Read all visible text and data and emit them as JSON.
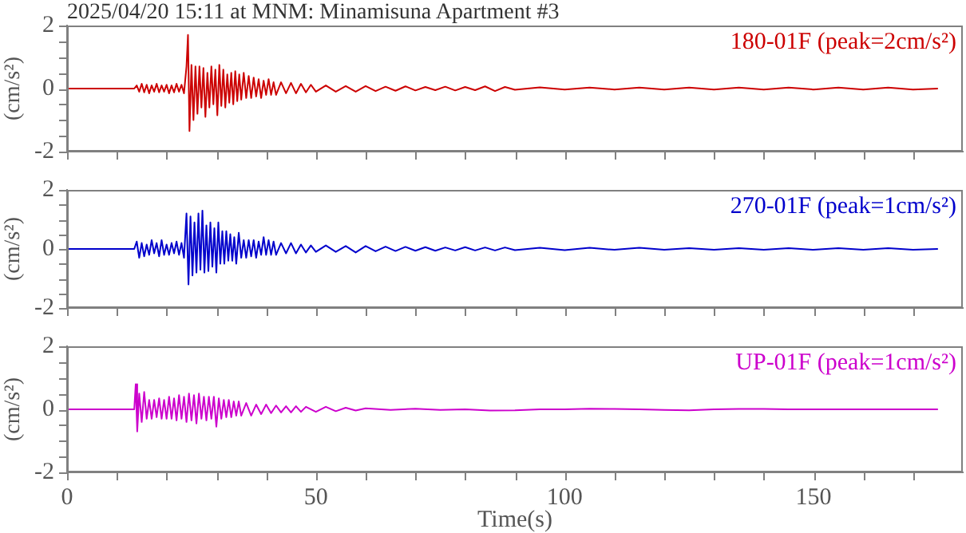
{
  "chart_data": [
    {
      "type": "line",
      "title": "2025/04/20 15:11 at MNM: Minamisuna Apartment #3",
      "ylabel": "(cm/s²)",
      "tick_labels": "y",
      "xlim": [
        0,
        180
      ],
      "xticks": [
        0,
        {
          "value": 10,
          "label": null
        },
        {
          "value": 20,
          "label": null
        },
        {
          "value": 30,
          "label": null
        },
        {
          "value": 40,
          "label": null
        },
        50,
        {
          "value": 60,
          "label": null
        },
        {
          "value": 70,
          "label": null
        },
        {
          "value": 80,
          "label": null
        },
        {
          "value": 90,
          "label": null
        },
        100,
        {
          "value": 110,
          "label": null
        },
        {
          "value": 120,
          "label": null
        },
        {
          "value": 130,
          "label": null
        },
        {
          "value": 140,
          "label": null
        },
        150,
        {
          "value": 160,
          "label": null
        },
        {
          "value": 170,
          "label": null
        }
      ],
      "ylim": [
        -2,
        2
      ],
      "yticks": [
        -2,
        {
          "value": -1.5,
          "label": null
        },
        {
          "value": -1,
          "label": null
        },
        {
          "value": -0.5,
          "label": null
        },
        0,
        {
          "value": 0.5,
          "label": null
        },
        {
          "value": 1,
          "label": null
        },
        {
          "value": 1.5,
          "label": null
        },
        2
      ],
      "x": [
        0,
        5,
        10,
        13.5,
        14,
        14.5,
        15,
        15.5,
        16,
        16.5,
        17,
        17.5,
        18,
        18.5,
        19,
        19.5,
        20,
        20.5,
        21,
        21.5,
        22,
        22.5,
        23,
        23.5,
        24,
        24.3,
        24.6,
        25,
        25.4,
        25.8,
        26.2,
        26.6,
        27,
        27.4,
        27.8,
        28.2,
        28.6,
        29,
        29.4,
        29.8,
        30.2,
        30.6,
        31,
        31.4,
        31.8,
        32.2,
        32.6,
        33,
        33.4,
        33.8,
        34.2,
        34.6,
        35,
        35.5,
        36,
        36.5,
        37,
        37.5,
        38,
        38.5,
        39,
        39.5,
        40,
        40.5,
        41,
        41.5,
        42,
        43,
        44,
        45,
        46,
        47,
        48,
        49,
        50,
        52,
        54,
        56,
        58,
        60,
        62,
        64,
        66,
        68,
        70,
        72,
        74,
        76,
        78,
        80,
        82,
        84,
        86,
        88,
        90,
        95,
        100,
        105,
        110,
        115,
        120,
        125,
        130,
        135,
        140,
        145,
        150,
        155,
        160,
        165,
        170,
        175
      ],
      "series": [
        {
          "name": "180-01F (peak=2cm/s²)",
          "color": "#cc0000",
          "values": [
            0,
            0,
            0,
            0,
            0.1,
            -0.1,
            0.15,
            -0.12,
            0.12,
            -0.15,
            0.1,
            -0.1,
            0.15,
            -0.12,
            0.1,
            -0.1,
            0.12,
            -0.15,
            0.1,
            -0.12,
            0.15,
            -0.1,
            0.12,
            -0.15,
            0.7,
            1.7,
            -1.35,
            0.75,
            -1.0,
            0.7,
            -0.8,
            0.7,
            -0.6,
            0.65,
            -0.9,
            0.5,
            -0.6,
            0.7,
            -0.5,
            0.6,
            -0.85,
            0.75,
            -0.55,
            0.6,
            -0.6,
            0.45,
            -0.45,
            0.5,
            -0.5,
            0.55,
            -0.4,
            0.45,
            -0.35,
            0.5,
            -0.3,
            0.4,
            -0.3,
            0.35,
            -0.25,
            0.3,
            -0.3,
            0.25,
            -0.2,
            0.3,
            -0.2,
            0.2,
            -0.2,
            0.2,
            -0.15,
            0.18,
            -0.15,
            0.15,
            -0.12,
            0.12,
            -0.1,
            0.1,
            -0.1,
            0.08,
            -0.1,
            0.08,
            -0.08,
            0.06,
            -0.07,
            0.07,
            -0.06,
            0.05,
            -0.05,
            0.06,
            -0.06,
            0.05,
            -0.05,
            0.07,
            -0.08,
            0.05,
            -0.04,
            0.04,
            -0.03,
            0.03,
            -0.03,
            0.03,
            -0.03,
            0.03,
            -0.03,
            0.03,
            -0.03,
            0.03,
            -0.03,
            0.03,
            -0.03,
            0.03,
            -0.03,
            0
          ]
        }
      ]
    },
    {
      "type": "line",
      "ylabel": "(cm/s²)",
      "tick_labels": "y",
      "xlim": [
        0,
        180
      ],
      "xticks": [
        0,
        {
          "value": 10,
          "label": null
        },
        {
          "value": 20,
          "label": null
        },
        {
          "value": 30,
          "label": null
        },
        {
          "value": 40,
          "label": null
        },
        50,
        {
          "value": 60,
          "label": null
        },
        {
          "value": 70,
          "label": null
        },
        {
          "value": 80,
          "label": null
        },
        {
          "value": 90,
          "label": null
        },
        100,
        {
          "value": 110,
          "label": null
        },
        {
          "value": 120,
          "label": null
        },
        {
          "value": 130,
          "label": null
        },
        {
          "value": 140,
          "label": null
        },
        150,
        {
          "value": 160,
          "label": null
        },
        {
          "value": 170,
          "label": null
        }
      ],
      "ylim": [
        -2,
        2
      ],
      "yticks": [
        -2,
        {
          "value": -1.5,
          "label": null
        },
        {
          "value": -1,
          "label": null
        },
        {
          "value": -0.5,
          "label": null
        },
        0,
        {
          "value": 0.5,
          "label": null
        },
        {
          "value": 1,
          "label": null
        },
        {
          "value": 1.5,
          "label": null
        },
        2
      ],
      "x": [
        0,
        5,
        10,
        13.5,
        14,
        14.5,
        15,
        15.5,
        16,
        16.5,
        17,
        17.5,
        18,
        18.5,
        19,
        19.5,
        20,
        20.5,
        21,
        21.5,
        22,
        22.5,
        23,
        23.5,
        24,
        24.4,
        24.8,
        25.2,
        25.6,
        26,
        26.4,
        26.8,
        27.2,
        27.6,
        28,
        28.4,
        28.8,
        29.2,
        29.6,
        30,
        30.4,
        30.8,
        31.2,
        31.6,
        32,
        32.4,
        32.8,
        33.2,
        33.6,
        34,
        34.5,
        35,
        35.5,
        36,
        36.5,
        37,
        37.5,
        38,
        38.5,
        39,
        39.5,
        40,
        40.5,
        41,
        41.5,
        42,
        43,
        44,
        45,
        46,
        47,
        48,
        49,
        50,
        52,
        54,
        56,
        58,
        60,
        62,
        64,
        66,
        68,
        70,
        72,
        74,
        76,
        78,
        80,
        82,
        84,
        86,
        88,
        90,
        95,
        100,
        105,
        110,
        115,
        120,
        125,
        130,
        135,
        140,
        145,
        150,
        155,
        160,
        165,
        170,
        175
      ],
      "series": [
        {
          "name": "270-01F (peak=1cm/s²)",
          "color": "#0000cc",
          "values": [
            0,
            0,
            0,
            0,
            0.25,
            -0.3,
            0.2,
            -0.25,
            0.15,
            -0.2,
            0.3,
            -0.15,
            0.2,
            -0.25,
            0.3,
            -0.2,
            0.15,
            -0.2,
            0.2,
            -0.15,
            0.25,
            -0.2,
            0.2,
            -0.3,
            1.2,
            -1.2,
            1.1,
            -0.9,
            0.9,
            -0.8,
            1.2,
            -0.7,
            1.3,
            -0.8,
            0.8,
            -0.75,
            0.9,
            -0.6,
            0.7,
            -0.8,
            0.9,
            -0.5,
            0.6,
            -0.5,
            0.6,
            -0.4,
            0.5,
            -0.4,
            0.4,
            -0.5,
            0.55,
            -0.3,
            0.3,
            -0.3,
            0.3,
            -0.25,
            0.3,
            -0.3,
            0.25,
            -0.2,
            0.4,
            -0.2,
            0.3,
            -0.2,
            0.25,
            -0.2,
            0.2,
            -0.15,
            0.2,
            -0.15,
            0.15,
            -0.12,
            0.12,
            -0.1,
            0.12,
            -0.1,
            0.1,
            -0.12,
            0.1,
            -0.08,
            0.08,
            -0.07,
            0.07,
            -0.06,
            0.06,
            -0.06,
            0.05,
            -0.05,
            0.06,
            -0.05,
            0.05,
            -0.05,
            0.05,
            -0.04,
            0.04,
            -0.04,
            0.04,
            -0.03,
            0.04,
            -0.03,
            0.03,
            -0.03,
            0.03,
            -0.03,
            0.03,
            -0.03,
            0.03,
            -0.03,
            0.03,
            -0.03,
            0
          ]
        }
      ]
    },
    {
      "type": "line",
      "xlabel": "Time(s)",
      "ylabel": "(cm/s²)",
      "xlim": [
        0,
        180
      ],
      "xticks": [
        0,
        {
          "value": 10,
          "label": null
        },
        {
          "value": 20,
          "label": null
        },
        {
          "value": 30,
          "label": null
        },
        {
          "value": 40,
          "label": null
        },
        50,
        {
          "value": 60,
          "label": null
        },
        {
          "value": 70,
          "label": null
        },
        {
          "value": 80,
          "label": null
        },
        {
          "value": 90,
          "label": null
        },
        100,
        {
          "value": 110,
          "label": null
        },
        {
          "value": 120,
          "label": null
        },
        {
          "value": 130,
          "label": null
        },
        {
          "value": 140,
          "label": null
        },
        150,
        {
          "value": 160,
          "label": null
        },
        {
          "value": 170,
          "label": null
        }
      ],
      "ylim": [
        -2,
        2
      ],
      "yticks": [
        -2,
        {
          "value": -1.5,
          "label": null
        },
        {
          "value": -1,
          "label": null
        },
        {
          "value": -0.5,
          "label": null
        },
        0,
        {
          "value": 0.5,
          "label": null
        },
        {
          "value": 1,
          "label": null
        },
        {
          "value": 1.5,
          "label": null
        },
        2
      ],
      "x": [
        0,
        5,
        10,
        13.5,
        13.8,
        14.1,
        14.5,
        15,
        15.5,
        16,
        16.5,
        17,
        17.5,
        18,
        18.5,
        19,
        19.5,
        20,
        20.5,
        21,
        21.5,
        22,
        22.5,
        23,
        23.5,
        24,
        24.5,
        25,
        25.5,
        26,
        26.5,
        27,
        27.5,
        28,
        28.5,
        29,
        29.5,
        30,
        30.5,
        31,
        31.5,
        32,
        32.5,
        33,
        33.5,
        34,
        34.5,
        35,
        36,
        37,
        38,
        39,
        40,
        41,
        42,
        43,
        44,
        45,
        46,
        47,
        48,
        50,
        52,
        54,
        56,
        58,
        60,
        65,
        70,
        75,
        80,
        85,
        90,
        95,
        100,
        105,
        110,
        115,
        120,
        125,
        130,
        135,
        140,
        145,
        150,
        155,
        160,
        165,
        170,
        175
      ],
      "series": [
        {
          "name": "UP-01F (peak=1cm/s²)",
          "color": "#cc00cc",
          "values": [
            0,
            0,
            0,
            0,
            0.8,
            -0.7,
            0.5,
            -0.4,
            0.55,
            -0.3,
            0.3,
            -0.3,
            0.3,
            -0.25,
            0.35,
            -0.3,
            0.3,
            -0.3,
            0.4,
            -0.3,
            0.35,
            -0.35,
            0.45,
            -0.3,
            0.4,
            -0.4,
            0.5,
            -0.35,
            0.45,
            -0.45,
            0.5,
            -0.3,
            0.4,
            -0.35,
            0.4,
            -0.3,
            0.4,
            -0.55,
            0.35,
            -0.3,
            0.3,
            -0.25,
            0.3,
            -0.25,
            0.25,
            -0.2,
            0.25,
            -0.2,
            0.2,
            -0.2,
            0.15,
            -0.15,
            0.15,
            -0.12,
            0.12,
            -0.1,
            0.1,
            -0.1,
            0.1,
            -0.08,
            0.08,
            -0.08,
            0.08,
            -0.06,
            0.05,
            -0.04,
            0.03,
            -0.02,
            0.02,
            -0.02,
            0,
            -0.04,
            -0.03,
            0,
            0,
            0.02,
            0.01,
            0,
            -0.02,
            -0.03,
            0,
            0.01,
            0.01,
            0,
            0,
            0,
            0,
            0,
            0,
            0
          ]
        }
      ]
    }
  ]
}
